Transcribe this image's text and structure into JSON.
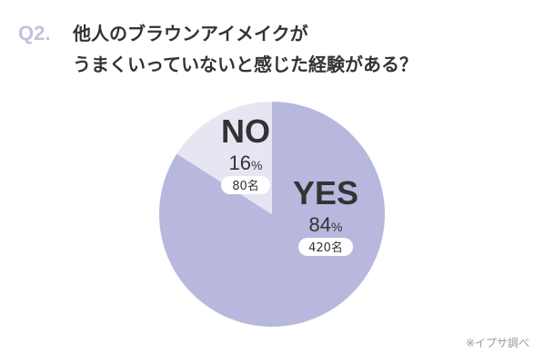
{
  "question": {
    "number": "Q2.",
    "line1": "他人のブラウンアイメイクが",
    "line2": "うまくいっていないと感じた経験がある？"
  },
  "source_note": "※イプサ調べ",
  "colors": {
    "yes": "#b8b8de",
    "no": "#e6e6f3",
    "pill": "#ffffff"
  },
  "chart_data": {
    "type": "pie",
    "title": "他人のブラウンアイメイクがうまくいっていないと感じた経験がある？",
    "slices": [
      {
        "label": "YES",
        "percent": 84,
        "count_label": "420名"
      },
      {
        "label": "NO",
        "percent": 16,
        "count_label": "80名"
      }
    ],
    "percent_unit": "%"
  }
}
